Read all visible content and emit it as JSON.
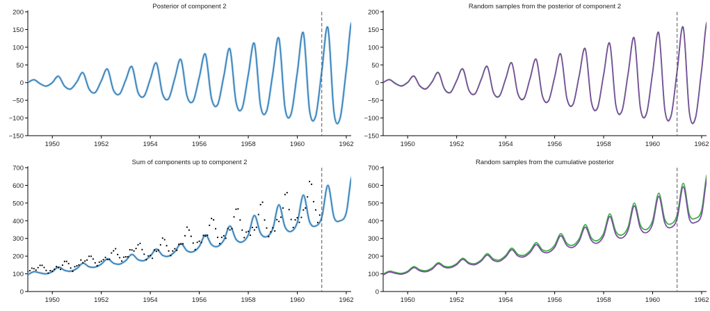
{
  "chart_data": [
    {
      "type": "line",
      "title": "Posterior of component 2",
      "xlabel": "",
      "ylabel": "",
      "xlim": [
        1949.0,
        1962.2
      ],
      "ylim": [
        -150,
        200
      ],
      "xticks": [
        1950,
        1952,
        1954,
        1956,
        1958,
        1960,
        1962
      ],
      "yticks": [
        -150,
        -100,
        -50,
        0,
        50,
        100,
        150,
        200
      ],
      "forecast_line_x": 1961.0,
      "grid": false,
      "series": [
        {
          "kind": "posterior_mean",
          "color": "#2d7bb6",
          "x_start": 1949.0,
          "x_step": 0.25,
          "values": [
            0,
            8,
            -3,
            -10,
            0,
            18,
            -10,
            -18,
            2,
            28,
            -18,
            -28,
            5,
            38,
            -22,
            -32,
            8,
            45,
            -28,
            -38,
            10,
            55,
            -32,
            -45,
            12,
            65,
            -38,
            -52,
            15,
            80,
            -45,
            -62,
            18,
            95,
            -55,
            -72,
            22,
            110,
            -65,
            -80,
            25,
            125,
            -72,
            -88,
            28,
            140,
            -78,
            -95,
            32,
            155,
            -85,
            -100,
            35,
            168,
            -90
          ]
        }
      ]
    },
    {
      "type": "line",
      "title": "Random samples from the posterior of component 2",
      "xlabel": "",
      "ylabel": "",
      "xlim": [
        1949.0,
        1962.2
      ],
      "ylim": [
        -150,
        200
      ],
      "xticks": [
        1950,
        1952,
        1954,
        1956,
        1958,
        1960,
        1962
      ],
      "yticks": [
        -150,
        -100,
        -50,
        0,
        50,
        100,
        150,
        200
      ],
      "forecast_line_x": 1961.0,
      "grid": false,
      "series": [
        {
          "kind": "sample",
          "color": "#3fae49",
          "x_start": 1949.0,
          "x_step": 0.25,
          "values": [
            0,
            9,
            -2,
            -9,
            1,
            19,
            -9,
            -17,
            3,
            29,
            -17,
            -27,
            6,
            39,
            -21,
            -31,
            9,
            46,
            -27,
            -37,
            11,
            56,
            -31,
            -44,
            13,
            66,
            -37,
            -51,
            16,
            81,
            -44,
            -61,
            19,
            96,
            -54,
            -71,
            23,
            111,
            -64,
            -79,
            26,
            126,
            -71,
            -87,
            29,
            141,
            -77,
            -94,
            33,
            156,
            -84,
            -99,
            36,
            170,
            -89
          ]
        },
        {
          "kind": "sample",
          "color": "#7b4f9e",
          "x_start": 1949.0,
          "x_step": 0.25,
          "values": [
            0,
            8,
            -3,
            -10,
            0,
            18,
            -10,
            -18,
            2,
            28,
            -18,
            -28,
            5,
            38,
            -22,
            -32,
            8,
            45,
            -28,
            -38,
            10,
            55,
            -32,
            -45,
            12,
            65,
            -38,
            -52,
            15,
            80,
            -45,
            -62,
            18,
            95,
            -55,
            -72,
            22,
            110,
            -65,
            -80,
            25,
            125,
            -72,
            -88,
            28,
            140,
            -78,
            -95,
            32,
            155,
            -85,
            -100,
            35,
            168,
            -90
          ]
        }
      ]
    },
    {
      "type": "line",
      "title": "Sum of components up to component 2",
      "xlabel": "",
      "ylabel": "",
      "xlim": [
        1949.0,
        1962.2
      ],
      "ylim": [
        0,
        700
      ],
      "xticks": [
        1950,
        1952,
        1954,
        1956,
        1958,
        1960,
        1962
      ],
      "yticks": [
        0,
        100,
        200,
        300,
        400,
        500,
        600,
        700
      ],
      "forecast_line_x": 1961.0,
      "grid": false,
      "series": [
        {
          "kind": "posterior_mean",
          "color": "#2d7bb6",
          "x_start": 1949.0,
          "x_step": 0.25,
          "values": [
            95,
            112,
            105,
            100,
            112,
            138,
            120,
            115,
            130,
            160,
            140,
            138,
            155,
            185,
            160,
            155,
            175,
            210,
            180,
            175,
            200,
            240,
            205,
            200,
            225,
            270,
            230,
            225,
            255,
            320,
            265,
            255,
            290,
            370,
            295,
            280,
            320,
            430,
            330,
            310,
            355,
            490,
            365,
            340,
            390,
            545,
            395,
            370,
            420,
            600,
            420,
            400,
            445,
            655,
            435
          ]
        },
        {
          "kind": "observations",
          "color": "#000000",
          "x_start": 1949.0,
          "x_step": 0.0833333,
          "values": [
            112,
            118,
            132,
            129,
            121,
            135,
            148,
            148,
            136,
            119,
            104,
            118,
            115,
            126,
            141,
            135,
            125,
            149,
            170,
            170,
            158,
            133,
            114,
            140,
            145,
            150,
            178,
            163,
            172,
            178,
            199,
            199,
            184,
            162,
            146,
            166,
            171,
            180,
            193,
            181,
            183,
            218,
            230,
            242,
            209,
            191,
            172,
            194,
            196,
            196,
            236,
            235,
            229,
            243,
            264,
            272,
            237,
            211,
            180,
            201,
            204,
            188,
            235,
            227,
            234,
            264,
            302,
            293,
            259,
            229,
            203,
            229,
            242,
            233,
            267,
            269,
            270,
            315,
            364,
            347,
            312,
            274,
            237,
            278,
            284,
            277,
            317,
            313,
            318,
            374,
            413,
            405,
            355,
            306,
            271,
            306,
            315,
            301,
            356,
            348,
            355,
            422,
            465,
            467,
            404,
            347,
            305,
            336,
            340,
            318,
            362,
            348,
            363,
            435,
            491,
            505,
            404,
            359,
            310,
            337,
            360,
            342,
            406,
            396,
            420,
            472,
            548,
            559,
            463,
            407,
            362,
            405,
            417,
            391,
            419,
            461,
            472,
            535,
            622,
            606,
            508,
            461,
            390,
            432
          ]
        }
      ]
    },
    {
      "type": "line",
      "title": "Random samples from the cumulative posterior",
      "xlabel": "",
      "ylabel": "",
      "xlim": [
        1949.0,
        1962.2
      ],
      "ylim": [
        0,
        700
      ],
      "xticks": [
        1950,
        1952,
        1954,
        1956,
        1958,
        1960,
        1962
      ],
      "yticks": [
        0,
        100,
        200,
        300,
        400,
        500,
        600,
        700
      ],
      "forecast_line_x": 1961.0,
      "grid": false,
      "series": [
        {
          "kind": "sample",
          "color": "#3fae49",
          "x_start": 1949.0,
          "x_step": 0.25,
          "values": [
            98,
            115,
            108,
            103,
            115,
            141,
            123,
            118,
            133,
            163,
            143,
            141,
            158,
            188,
            163,
            158,
            178,
            214,
            184,
            179,
            204,
            245,
            210,
            205,
            231,
            276,
            236,
            232,
            262,
            327,
            272,
            262,
            298,
            378,
            303,
            288,
            329,
            439,
            339,
            320,
            366,
            500,
            376,
            351,
            402,
            556,
            407,
            382,
            433,
            612,
            434,
            414,
            460,
            668,
            450
          ]
        },
        {
          "kind": "sample",
          "color": "#7b4f9e",
          "x_start": 1949.0,
          "x_step": 0.25,
          "values": [
            93,
            110,
            103,
            98,
            110,
            135,
            117,
            112,
            127,
            157,
            137,
            135,
            152,
            182,
            157,
            152,
            172,
            206,
            176,
            171,
            196,
            236,
            201,
            196,
            221,
            265,
            226,
            221,
            250,
            315,
            260,
            250,
            285,
            364,
            289,
            274,
            314,
            424,
            323,
            303,
            348,
            484,
            358,
            333,
            382,
            538,
            387,
            362,
            412,
            592,
            411,
            391,
            436,
            646,
            426
          ]
        }
      ]
    }
  ]
}
